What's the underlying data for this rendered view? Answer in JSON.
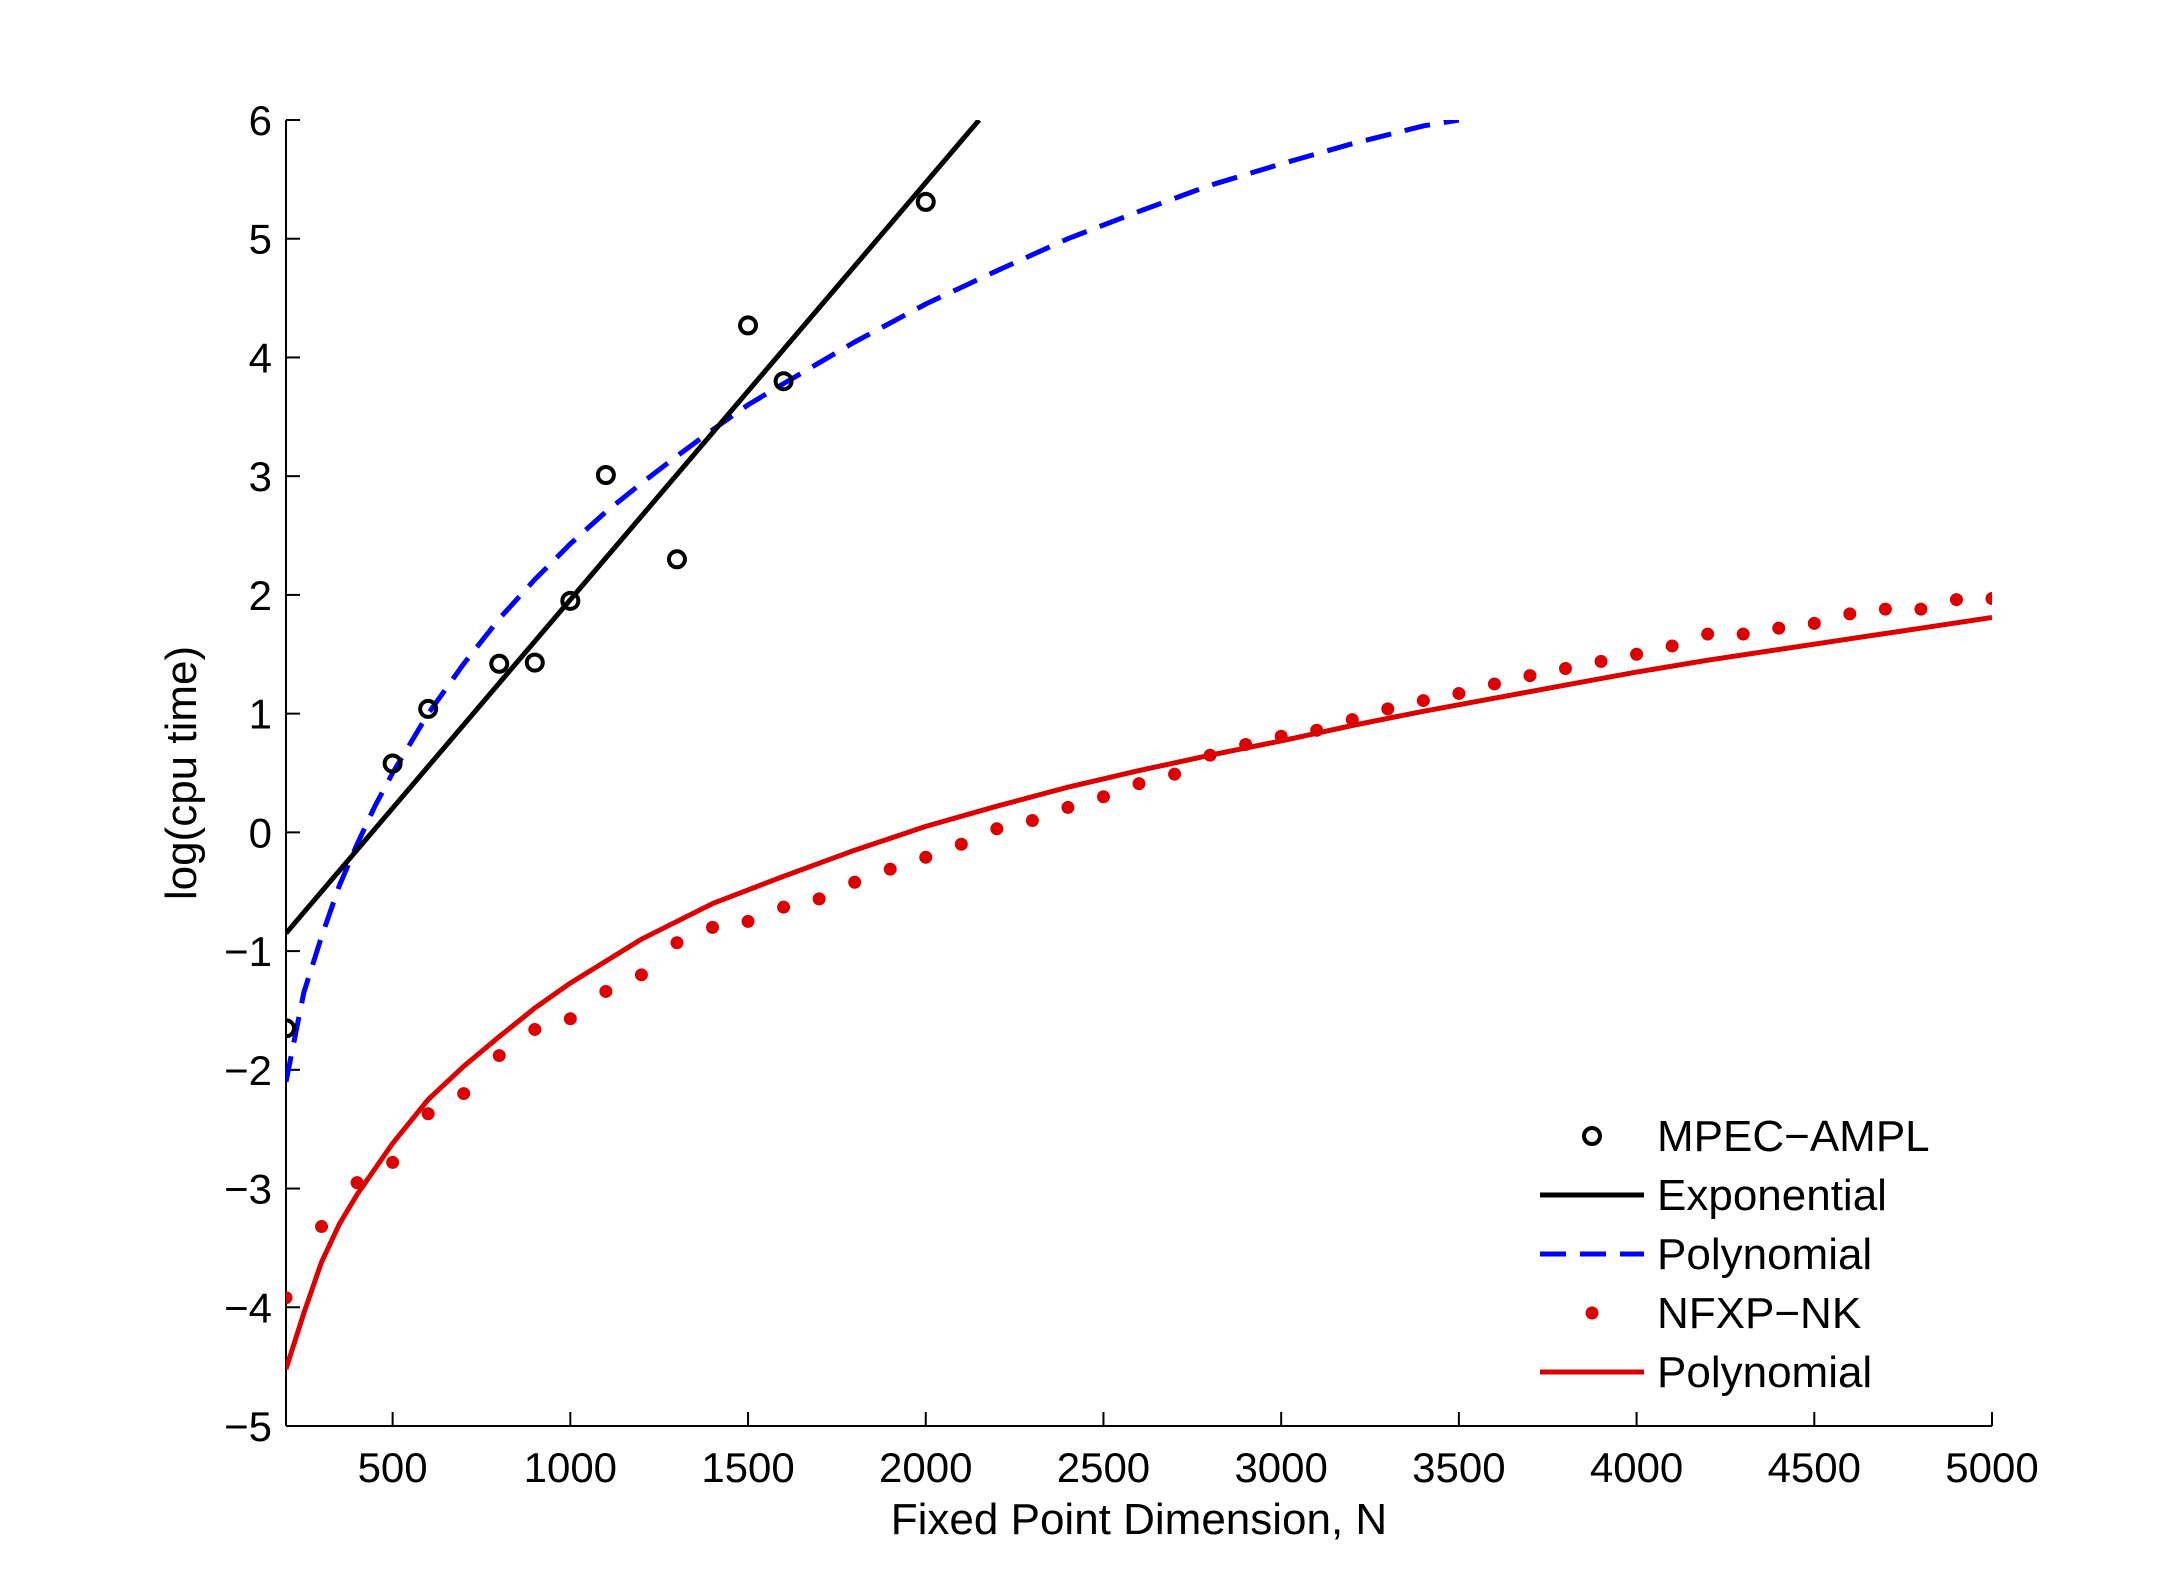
{
  "chart_data": {
    "type": "scatter",
    "title": "",
    "xlabel": "Fixed Point Dimension, N",
    "ylabel": "log(cpu time)",
    "xlim": [
      200,
      5000
    ],
    "ylim": [
      -5,
      6
    ],
    "xticks": [
      500,
      1000,
      1500,
      2000,
      2500,
      3000,
      3500,
      4000,
      4500,
      5000
    ],
    "yticks": [
      -5,
      -4,
      -3,
      -2,
      -1,
      0,
      1,
      2,
      3,
      4,
      5,
      6
    ],
    "xtick_labels": [
      "500",
      "1000",
      "1500",
      "2000",
      "2500",
      "3000",
      "3500",
      "4000",
      "4500",
      "5000"
    ],
    "ytick_labels": [
      "−5",
      "−4",
      "−3",
      "−2",
      "−1",
      "0",
      "1",
      "2",
      "3",
      "4",
      "5",
      "6"
    ],
    "grid": false,
    "legend_position": "bottom-right",
    "series": [
      {
        "name": "MPEC−AMPL",
        "kind": "markers-circle",
        "color": "#000000",
        "x": [
          200,
          500,
          600,
          800,
          900,
          1000,
          1100,
          1300,
          1500,
          1600,
          2000
        ],
        "y": [
          -1.65,
          0.58,
          1.04,
          1.42,
          1.43,
          1.95,
          3.01,
          2.3,
          4.27,
          3.8,
          5.31
        ]
      },
      {
        "name": "Exponential",
        "kind": "line-solid",
        "color": "#000000",
        "x": [
          200,
          2150
        ],
        "y": [
          -0.85,
          6.0
        ]
      },
      {
        "name": "Polynomial",
        "kind": "line-dashed",
        "color": "#0000ff",
        "x": [
          200,
          250,
          300,
          350,
          400,
          450,
          500,
          600,
          700,
          800,
          900,
          1000,
          1100,
          1200,
          1300,
          1400,
          1500,
          1600,
          1800,
          2000,
          2200,
          2400,
          2600,
          2800,
          3000,
          3200,
          3400,
          3500
        ],
        "y": [
          -2.1,
          -1.35,
          -0.88,
          -0.45,
          -0.1,
          0.22,
          0.5,
          1.0,
          1.42,
          1.8,
          2.13,
          2.43,
          2.7,
          2.94,
          3.17,
          3.39,
          3.6,
          3.78,
          4.13,
          4.45,
          4.73,
          5.0,
          5.23,
          5.45,
          5.63,
          5.8,
          5.95,
          6.0
        ]
      },
      {
        "name": "NFXP−NK",
        "kind": "markers-dot",
        "color": "#dd0000",
        "x": [
          200,
          300,
          400,
          500,
          600,
          700,
          800,
          900,
          1000,
          1100,
          1200,
          1300,
          1400,
          1500,
          1600,
          1700,
          1800,
          1900,
          2000,
          2100,
          2200,
          2300,
          2400,
          2500,
          2600,
          2700,
          2800,
          2900,
          3000,
          3100,
          3200,
          3300,
          3400,
          3500,
          3600,
          3700,
          3800,
          3900,
          4000,
          4100,
          4200,
          4300,
          4400,
          4500,
          4600,
          4700,
          4800,
          4900,
          5000
        ],
        "y": [
          -3.92,
          -3.32,
          -2.95,
          -2.78,
          -2.37,
          -2.2,
          -1.88,
          -1.66,
          -1.57,
          -1.34,
          -1.2,
          -0.93,
          -0.8,
          -0.75,
          -0.63,
          -0.56,
          -0.42,
          -0.31,
          -0.21,
          -0.1,
          0.03,
          0.1,
          0.21,
          0.3,
          0.41,
          0.49,
          0.65,
          0.74,
          0.81,
          0.86,
          0.95,
          1.04,
          1.11,
          1.17,
          1.25,
          1.32,
          1.38,
          1.44,
          1.5,
          1.57,
          1.67,
          1.67,
          1.72,
          1.76,
          1.84,
          1.88,
          1.88,
          1.96,
          1.97
        ]
      },
      {
        "name": "Polynomial",
        "kind": "line-solid",
        "color": "#dd0000",
        "x": [
          200,
          250,
          300,
          350,
          400,
          500,
          600,
          700,
          800,
          900,
          1000,
          1200,
          1400,
          1600,
          1800,
          2000,
          2200,
          2400,
          2600,
          2800,
          3000,
          3200,
          3400,
          3600,
          3800,
          4000,
          4200,
          4400,
          4600,
          4800,
          5000
        ],
        "y": [
          -4.52,
          -4.05,
          -3.62,
          -3.3,
          -3.05,
          -2.62,
          -2.25,
          -1.97,
          -1.72,
          -1.48,
          -1.27,
          -0.9,
          -0.6,
          -0.37,
          -0.15,
          0.05,
          0.22,
          0.38,
          0.52,
          0.65,
          0.77,
          0.9,
          1.02,
          1.13,
          1.24,
          1.35,
          1.45,
          1.54,
          1.63,
          1.72,
          1.81
        ]
      }
    ]
  }
}
